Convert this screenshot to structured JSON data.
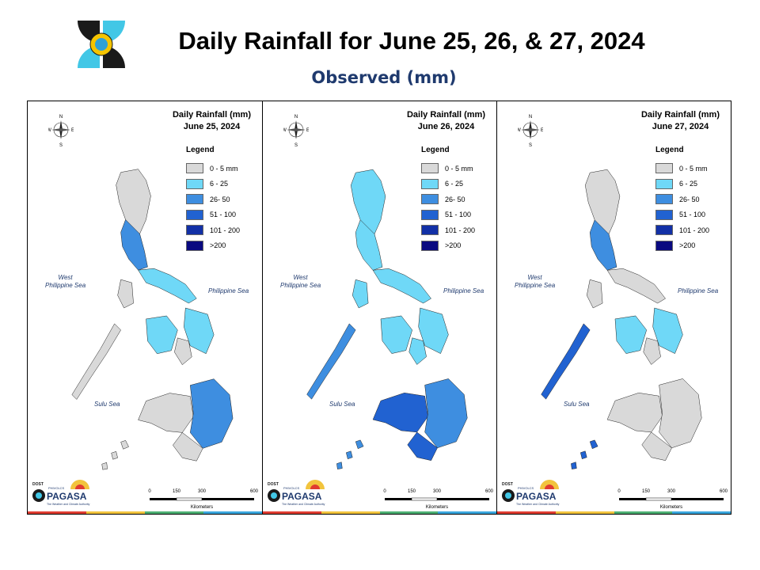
{
  "header": {
    "title": "Daily Rainfall for June 25, 26, & 27, 2024",
    "subtitle": "Observed (mm)"
  },
  "legend": {
    "heading": "Legend",
    "classes": [
      {
        "label": "0 - 5 mm",
        "color": "#d9d9d9"
      },
      {
        "label": "6 - 25",
        "color": "#6fd8f7"
      },
      {
        "label": "26- 50",
        "color": "#3e8ee0"
      },
      {
        "label": "51 - 100",
        "color": "#2162d1"
      },
      {
        "label": "101 - 200",
        "color": "#1230a6"
      },
      {
        "label": ">200",
        "color": "#0a0a80"
      }
    ]
  },
  "seas": {
    "west": "West\nPhilippine Sea",
    "east": "Philippine Sea",
    "south": "Sulu Sea"
  },
  "compass": {
    "n": "N",
    "s": "S",
    "e": "E",
    "w": "W"
  },
  "scalebar": {
    "ticks": [
      "0",
      "150",
      "300",
      "600"
    ],
    "unit": "Kilometers"
  },
  "agency": {
    "top": "DOST",
    "sub": "PAGASA",
    "tag": "PHIVOLCS",
    "slogan": "The Weather and Climate Authority"
  },
  "panels": [
    {
      "title_line1": "Daily Rainfall (mm)",
      "title_line2": "June 25, 2024",
      "regions": {
        "north": 0,
        "central_luzon": 2,
        "bicol": 1,
        "visayas": 1,
        "mindanao_east": 2,
        "mindanao": 0,
        "palawan": 0
      }
    },
    {
      "title_line1": "Daily Rainfall (mm)",
      "title_line2": "June 26, 2024",
      "regions": {
        "north": 1,
        "central_luzon": 1,
        "bicol": 1,
        "visayas": 1,
        "mindanao_east": 2,
        "mindanao": 3,
        "palawan": 2
      }
    },
    {
      "title_line1": "Daily Rainfall (mm)",
      "title_line2": "June 27, 2024",
      "regions": {
        "north": 0,
        "central_luzon": 2,
        "bicol": 0,
        "visayas": 1,
        "mindanao_east": 0,
        "mindanao": 0,
        "palawan": 3
      }
    }
  ],
  "colors": {
    "border": "#000000",
    "strip": [
      "#e03c31",
      "#f2c43d",
      "#4caf72",
      "#3aa6dd"
    ]
  }
}
